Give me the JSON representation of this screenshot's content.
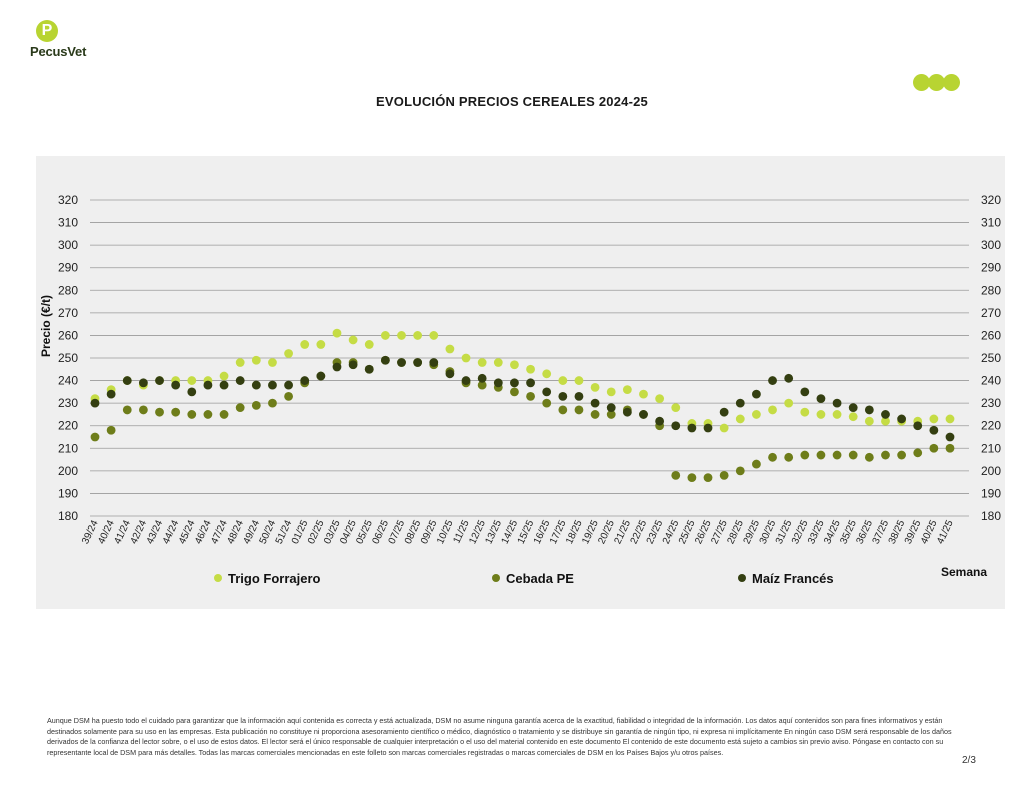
{
  "brand": {
    "name": "PecusVet",
    "mark": "P"
  },
  "decor": {
    "accent": "#b8d432"
  },
  "footer": {
    "disclaimer": "Aunque DSM ha puesto todo el cuidado para garantizar que la información aquí contenida es correcta y está actualizada, DSM no asume ninguna garantía acerca de la exactitud, fiabilidad o integridad de la información. Los datos aquí contenidos son para fines informativos y están destinados solamente para su uso en las empresas. Esta publicación no constituye ni proporciona asesoramiento científico o médico, diagnóstico o tratamiento y se distribuye sin garantía de ningún tipo, ni expresa ni implícitamente En ningún caso DSM será responsable de los daños derivados de la confianza del lector sobre, o el uso de estos datos. El lector será el único responsable de cualquier interpretación o el uso del material contenido en este documento El contenido de este documento está sujeto a cambios sin previo aviso. Póngase en contacto con su representante local de DSM para más detalles. Todas las marcas comerciales mencionadas en este folleto son marcas comerciales registradas o marcas comerciales de DSM en los Países Bajos y/u otros países.",
    "page": "2/3"
  },
  "chart_data": {
    "type": "scatter",
    "title": "EVOLUCIÓN PRECIOS CEREALES 2024-25",
    "xlabel": "Semana",
    "ylabel": "Precio (€/t)",
    "ylim": [
      180,
      320
    ],
    "ytick_step": 10,
    "grid": true,
    "legend_position": "bottom",
    "categories": [
      "39/24",
      "40/24",
      "41/24",
      "42/24",
      "43/24",
      "44/24",
      "45/24",
      "46/24",
      "47/24",
      "48/24",
      "49/24",
      "50/24",
      "51/24",
      "01/25",
      "02/25",
      "03/25",
      "04/25",
      "05/25",
      "06/25",
      "07/25",
      "08/25",
      "09/25",
      "10/25",
      "11/25",
      "12/25",
      "13/25",
      "14/25",
      "15/25",
      "16/25",
      "17/25",
      "18/25",
      "19/25",
      "20/25",
      "21/25",
      "22/25",
      "23/25",
      "24/25",
      "25/25",
      "26/25",
      "27/25",
      "28/25",
      "29/25",
      "30/25",
      "31/25",
      "32/25",
      "33/25",
      "34/25",
      "35/25",
      "36/25",
      "37/25",
      "38/25",
      "39/25",
      "40/25",
      "41/25"
    ],
    "series": [
      {
        "name": "Trigo Forrajero",
        "color": "#c5dc45",
        "values": [
          232,
          236,
          240,
          238,
          240,
          240,
          240,
          240,
          242,
          248,
          249,
          248,
          252,
          256,
          256,
          261,
          258,
          256,
          260,
          260,
          260,
          260,
          254,
          250,
          248,
          248,
          247,
          245,
          243,
          240,
          240,
          237,
          235,
          236,
          234,
          232,
          228,
          221,
          221,
          219,
          223,
          225,
          227,
          230,
          226,
          225,
          225,
          224,
          222,
          222,
          222,
          222,
          223,
          223
        ]
      },
      {
        "name": "Cebada PE",
        "color": "#6e7d1a",
        "values": [
          215,
          218,
          227,
          227,
          226,
          226,
          225,
          225,
          225,
          228,
          229,
          230,
          233,
          239,
          242,
          248,
          248,
          245,
          249,
          248,
          248,
          247,
          244,
          239,
          238,
          237,
          235,
          233,
          230,
          227,
          227,
          225,
          225,
          227,
          225,
          220,
          198,
          197,
          197,
          198,
          200,
          203,
          206,
          206,
          207,
          207,
          207,
          207,
          206,
          207,
          207,
          208,
          210,
          210
        ]
      },
      {
        "name": "Maíz Francés",
        "color": "#343f11",
        "values": [
          230,
          234,
          240,
          239,
          240,
          238,
          235,
          238,
          238,
          240,
          238,
          238,
          238,
          240,
          242,
          246,
          247,
          245,
          249,
          248,
          248,
          248,
          243,
          240,
          241,
          239,
          239,
          239,
          235,
          233,
          233,
          230,
          228,
          226,
          225,
          222,
          220,
          219,
          219,
          226,
          230,
          234,
          240,
          241,
          235,
          232,
          230,
          228,
          227,
          225,
          223,
          220,
          218,
          215
        ]
      }
    ]
  }
}
